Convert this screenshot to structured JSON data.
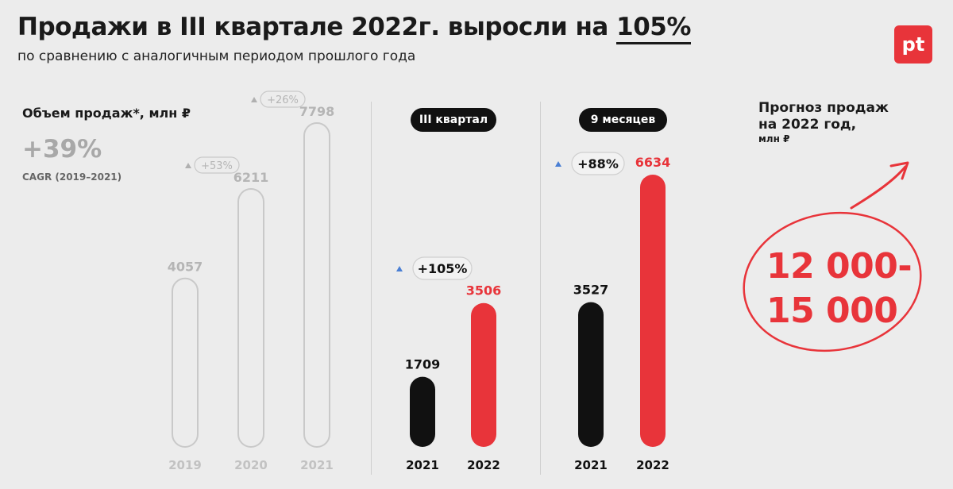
{
  "header": {
    "title_prefix": "Продажи в III квартале 2022г. выросли на",
    "title_highlight": "105%",
    "subtitle": "по сравнению с аналогичным периодом прошлого года"
  },
  "logo": {
    "text": "pt",
    "color": "#e8343a"
  },
  "left_panel": {
    "title": "Объем продаж*, млн ₽",
    "cagr_value": "+39%",
    "cagr_label": "CAGR (2019–2021)"
  },
  "q3_panel": {
    "pill": "III квартал"
  },
  "nine_months_panel": {
    "pill": "9 месяцев"
  },
  "forecast": {
    "title_line1": "Прогноз продаж",
    "title_line2": "на 2022 год,",
    "unit": "млн ₽",
    "value_line1": "12 000-",
    "value_line2": "15 000"
  },
  "colors": {
    "accent": "#e8343a",
    "dark": "#111111",
    "muted": "#b5b5b5",
    "up_arrow": "#4a7fd4"
  },
  "chart_data": [
    {
      "type": "bar",
      "title": "Объем продаж*, млн ₽",
      "categories": [
        "2019",
        "2020",
        "2021"
      ],
      "values": [
        4057,
        6211,
        7798
      ],
      "growth_labels": [
        "+53%",
        "+26%"
      ],
      "style": "outline-muted"
    },
    {
      "type": "bar",
      "title": "III квартал",
      "categories": [
        "2021",
        "2022"
      ],
      "values": [
        1709,
        3506
      ],
      "growth_labels": [
        "+105%"
      ]
    },
    {
      "type": "bar",
      "title": "9 месяцев",
      "categories": [
        "2021",
        "2022"
      ],
      "values": [
        3527,
        6634
      ],
      "growth_labels": [
        "+88%"
      ]
    }
  ]
}
